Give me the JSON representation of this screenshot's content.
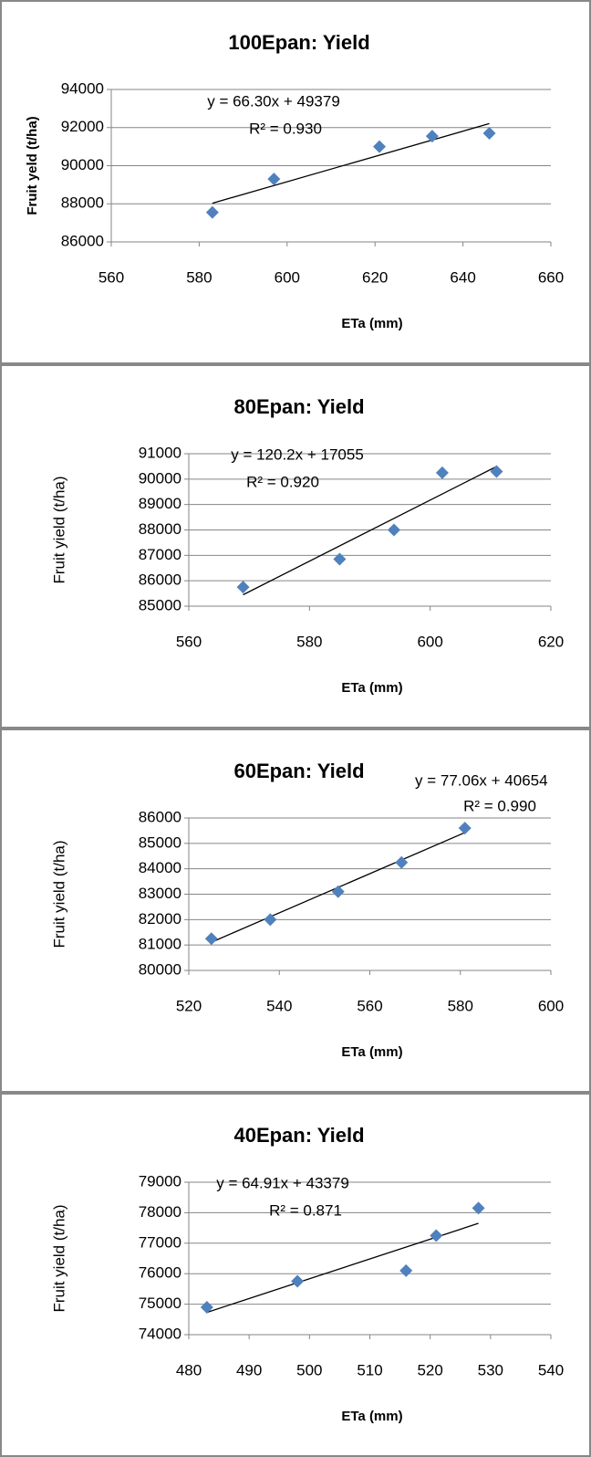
{
  "chart_data": [
    {
      "type": "scatter",
      "title": "100Epan:  Yield",
      "xlabel": "ETa (mm)",
      "ylabel": "Fruit yeld  (t/ha)",
      "ylabel_bold": true,
      "x": [
        583,
        597,
        621,
        633,
        646
      ],
      "values": [
        87550,
        89300,
        91000,
        91550,
        91700
      ],
      "color": "#4f81bd",
      "xlim": [
        560,
        660
      ],
      "xticks": [
        560,
        580,
        600,
        620,
        640,
        660
      ],
      "ylim": [
        86000,
        94000
      ],
      "yticks": [
        86000,
        88000,
        90000,
        92000,
        94000
      ],
      "grid": true,
      "trendline": {
        "slope": 66.3,
        "intercept": 49379
      },
      "annotations": [
        "y = 66.30x + 49379",
        "R² = 0.930"
      ]
    },
    {
      "type": "scatter",
      "title": "80Epan:  Yield",
      "xlabel": "ETa (mm)",
      "ylabel": "Fruit yield (t/ha)",
      "ylabel_bold": false,
      "x": [
        569,
        585,
        594,
        602,
        611
      ],
      "values": [
        85750,
        86850,
        88000,
        90250,
        90300
      ],
      "color": "#4f81bd",
      "xlim": [
        560,
        620
      ],
      "xticks": [
        560,
        580,
        600,
        620
      ],
      "ylim": [
        85000,
        91000
      ],
      "yticks": [
        85000,
        86000,
        87000,
        88000,
        89000,
        90000,
        91000
      ],
      "grid": true,
      "trendline": {
        "slope": 120.2,
        "intercept": 17055
      },
      "annotations": [
        "y = 120.2x + 17055",
        "R² = 0.920"
      ]
    },
    {
      "type": "scatter",
      "title": "60Epan:  Yield",
      "xlabel": "ETa (mm)",
      "ylabel": "Fruit yield (t/ha)",
      "ylabel_bold": false,
      "x": [
        525,
        538,
        553,
        567,
        581
      ],
      "values": [
        81250,
        82000,
        83100,
        84250,
        85600
      ],
      "color": "#4f81bd",
      "xlim": [
        520,
        600
      ],
      "xticks": [
        520,
        540,
        560,
        580,
        600
      ],
      "ylim": [
        80000,
        86000
      ],
      "yticks": [
        80000,
        81000,
        82000,
        83000,
        84000,
        85000,
        86000
      ],
      "grid": true,
      "trendline": {
        "slope": 77.06,
        "intercept": 40654
      },
      "annotations": [
        "y = 77.06x + 40654",
        "R² = 0.990"
      ]
    },
    {
      "type": "scatter",
      "title": "40Epan:  Yield",
      "xlabel": "ETa (mm)",
      "ylabel": "Fruit yield (t/ha)",
      "ylabel_bold": false,
      "x": [
        483,
        498,
        516,
        521,
        528
      ],
      "values": [
        74900,
        75750,
        76100,
        77250,
        78150
      ],
      "color": "#4f81bd",
      "xlim": [
        480,
        540
      ],
      "xticks": [
        480,
        490,
        500,
        510,
        520,
        530,
        540
      ],
      "ylim": [
        74000,
        79000
      ],
      "yticks": [
        74000,
        75000,
        76000,
        77000,
        78000,
        79000
      ],
      "grid": true,
      "trendline": {
        "slope": 64.91,
        "intercept": 43379
      },
      "annotations": [
        "y = 64.91x + 43379",
        "R² = 0.871"
      ]
    }
  ]
}
